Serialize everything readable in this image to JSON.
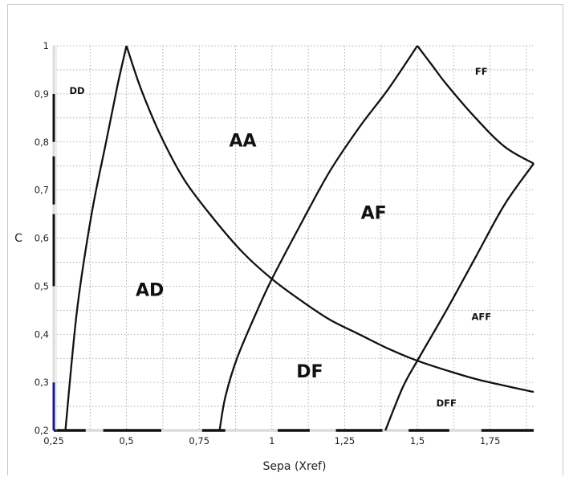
{
  "chart_data": {
    "type": "line",
    "xlabel": "Sepa (Xref)",
    "ylabel": "C",
    "xlim": [
      0.25,
      1.9
    ],
    "ylim": [
      0.2,
      1.0
    ],
    "x_ticks": [
      "0,25",
      "0,5",
      "0,75",
      "1",
      "1,25",
      "1,5",
      "1,75"
    ],
    "y_ticks": [
      "0,2",
      "0,3",
      "0,4",
      "0,5",
      "0,6",
      "0,7",
      "0,8",
      "0,9",
      "1"
    ],
    "x_tick_values": [
      0.25,
      0.5,
      0.75,
      1.0,
      1.25,
      1.5,
      1.75
    ],
    "y_tick_values": [
      0.2,
      0.3,
      0.4,
      0.5,
      0.6,
      0.7,
      0.8,
      0.9,
      1.0
    ],
    "grid": true,
    "series": [
      {
        "points": [
          [
            0.29,
            0.2
          ],
          [
            0.33,
            0.45
          ],
          [
            0.38,
            0.65
          ],
          [
            0.43,
            0.8
          ],
          [
            0.47,
            0.92
          ],
          [
            0.5,
            1.0
          ]
        ]
      },
      {
        "points": [
          [
            0.5,
            1.0
          ],
          [
            0.55,
            0.91
          ],
          [
            0.62,
            0.81
          ],
          [
            0.7,
            0.72
          ],
          [
            0.8,
            0.64
          ],
          [
            0.9,
            0.57
          ],
          [
            1.0,
            0.515
          ],
          [
            1.1,
            0.47
          ],
          [
            1.2,
            0.43
          ],
          [
            1.3,
            0.4
          ],
          [
            1.4,
            0.37
          ],
          [
            1.5,
            0.345
          ],
          [
            1.6,
            0.325
          ],
          [
            1.7,
            0.307
          ],
          [
            1.8,
            0.293
          ],
          [
            1.9,
            0.28
          ]
        ]
      },
      {
        "points": [
          [
            0.82,
            0.2
          ],
          [
            0.84,
            0.27
          ],
          [
            0.88,
            0.35
          ],
          [
            0.95,
            0.45
          ],
          [
            1.0,
            0.515
          ],
          [
            1.1,
            0.63
          ],
          [
            1.2,
            0.74
          ],
          [
            1.3,
            0.83
          ],
          [
            1.4,
            0.91
          ],
          [
            1.5,
            1.0
          ]
        ]
      },
      {
        "points": [
          [
            1.5,
            1.0
          ],
          [
            1.55,
            0.96
          ],
          [
            1.6,
            0.92
          ],
          [
            1.7,
            0.85
          ],
          [
            1.8,
            0.79
          ],
          [
            1.9,
            0.755
          ]
        ]
      },
      {
        "points": [
          [
            1.39,
            0.2
          ],
          [
            1.45,
            0.29
          ],
          [
            1.5,
            0.345
          ],
          [
            1.6,
            0.45
          ],
          [
            1.7,
            0.56
          ],
          [
            1.8,
            0.67
          ],
          [
            1.9,
            0.755
          ]
        ]
      }
    ],
    "annotations": [
      {
        "text": "DD",
        "x": 0.33,
        "y": 0.9,
        "size": "small"
      },
      {
        "text": "AA",
        "x": 0.9,
        "y": 0.79,
        "size": "big"
      },
      {
        "text": "AD",
        "x": 0.58,
        "y": 0.48,
        "size": "big"
      },
      {
        "text": "AF",
        "x": 1.35,
        "y": 0.64,
        "size": "big"
      },
      {
        "text": "DF",
        "x": 1.13,
        "y": 0.31,
        "size": "big"
      },
      {
        "text": "FF",
        "x": 1.72,
        "y": 0.94,
        "size": "small"
      },
      {
        "text": "AFF",
        "x": 1.72,
        "y": 0.43,
        "size": "small"
      },
      {
        "text": "DFF",
        "x": 1.6,
        "y": 0.25,
        "size": "small"
      }
    ]
  },
  "colors": {
    "curve": "#111111",
    "grid": "#9a9a9a",
    "axis_segment_dark": "#111111",
    "axis_segment_light": "#dcdcdc",
    "axis_segment_blue": "#1a1a8c"
  }
}
